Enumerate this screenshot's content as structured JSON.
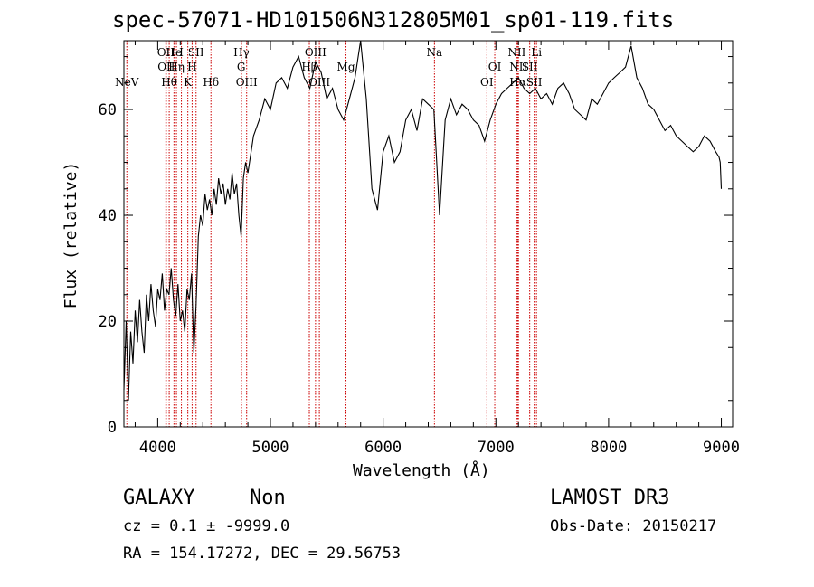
{
  "chart_data": {
    "type": "line",
    "title": "spec-57071-HD101506N312805M01_sp01-119.fits",
    "xlabel": "Wavelength (Å)",
    "ylabel": "Flux (relative)",
    "xlim": [
      3700,
      9100
    ],
    "ylim": [
      0,
      73
    ],
    "x_ticks": [
      4000,
      5000,
      6000,
      7000,
      8000,
      9000
    ],
    "y_ticks": [
      0,
      20,
      40,
      60
    ],
    "grid": false,
    "legend": "none",
    "line_color": "#000000",
    "marker_color": "#cc0000",
    "series": [
      {
        "x": [
          3700,
          3720,
          3740,
          3760,
          3780,
          3800,
          3820,
          3840,
          3860,
          3880,
          3900,
          3920,
          3940,
          3960,
          3980,
          4000,
          4020,
          4040,
          4060,
          4080,
          4100,
          4120,
          4140,
          4160,
          4180,
          4200,
          4220,
          4240,
          4260,
          4280,
          4300,
          4320,
          4340,
          4360,
          4380,
          4400,
          4420,
          4440,
          4460,
          4480,
          4500,
          4520,
          4540,
          4560,
          4580,
          4600,
          4620,
          4640,
          4660,
          4680,
          4700,
          4720,
          4740,
          4760,
          4780,
          4800,
          4850,
          4900,
          4950,
          5000,
          5050,
          5100,
          5150,
          5200,
          5250,
          5300,
          5350,
          5400,
          5450,
          5500,
          5550,
          5600,
          5650,
          5700,
          5750,
          5800,
          5850,
          5900,
          5950,
          6000,
          6050,
          6100,
          6150,
          6200,
          6250,
          6300,
          6350,
          6400,
          6450,
          6500,
          6550,
          6600,
          6650,
          6700,
          6750,
          6800,
          6850,
          6900,
          6950,
          7000,
          7050,
          7100,
          7150,
          7200,
          7250,
          7300,
          7350,
          7400,
          7450,
          7500,
          7550,
          7600,
          7650,
          7700,
          7750,
          7800,
          7850,
          7900,
          7950,
          8000,
          8050,
          8100,
          8150,
          8200,
          8250,
          8300,
          8350,
          8400,
          8450,
          8500,
          8550,
          8600,
          8650,
          8700,
          8750,
          8800,
          8850,
          8900,
          8950,
          8980,
          8990,
          9000
        ],
        "y": [
          7,
          20,
          5,
          18,
          12,
          22,
          16,
          24,
          18,
          14,
          25,
          20,
          27,
          22,
          19,
          26,
          24,
          29,
          22,
          26,
          25,
          30,
          24,
          21,
          27,
          20,
          22,
          18,
          26,
          24,
          29,
          14,
          23,
          36,
          40,
          38,
          44,
          41,
          43,
          40,
          45,
          42,
          47,
          44,
          46,
          42,
          45,
          43,
          48,
          44,
          46,
          40,
          36,
          47,
          50,
          48,
          55,
          58,
          62,
          60,
          65,
          66,
          64,
          68,
          70,
          66,
          64,
          69,
          67,
          62,
          64,
          60,
          58,
          62,
          66,
          73,
          62,
          45,
          41,
          52,
          55,
          50,
          52,
          58,
          60,
          56,
          62,
          61,
          60,
          40,
          58,
          62,
          59,
          61,
          60,
          58,
          57,
          54,
          58,
          61,
          63,
          64,
          65,
          66,
          64,
          63,
          64,
          62,
          63,
          61,
          64,
          65,
          63,
          60,
          59,
          58,
          62,
          61,
          63,
          65,
          66,
          67,
          68,
          72,
          66,
          64,
          61,
          60,
          58,
          56,
          57,
          55,
          54,
          53,
          52,
          53,
          55,
          54,
          52,
          51,
          50,
          45
        ]
      }
    ],
    "lines": [
      {
        "label": "NeV",
        "x": 3726,
        "row": 3
      },
      {
        "label": "OII",
        "x": 4072,
        "row": 1
      },
      {
        "label": "OII",
        "x": 4076,
        "row": 2
      },
      {
        "label": "Hθ",
        "x": 4102,
        "row": 3
      },
      {
        "label": "He",
        "x": 4144,
        "row": 1
      },
      {
        "label": "Hη",
        "x": 4166,
        "row": 2
      },
      {
        "label": "I",
        "x": 4210,
        "row": 1
      },
      {
        "label": "K",
        "x": 4267,
        "row": 3
      },
      {
        "label": "H",
        "x": 4305,
        "row": 2
      },
      {
        "label": "SII",
        "x": 4340,
        "row": 1
      },
      {
        "label": "Hδ",
        "x": 4472,
        "row": 3
      },
      {
        "label": "Hγ",
        "x": 4743,
        "row": 1
      },
      {
        "label": "G",
        "x": 4740,
        "row": 2
      },
      {
        "label": "OIII",
        "x": 4789,
        "row": 3
      },
      {
        "label": "OIII",
        "x": 5400,
        "row": 1
      },
      {
        "label": "Hβ",
        "x": 5345,
        "row": 2
      },
      {
        "label": "OIII",
        "x": 5434,
        "row": 3
      },
      {
        "label": "Mg",
        "x": 5670,
        "row": 2
      },
      {
        "label": "Na",
        "x": 6455,
        "row": 1
      },
      {
        "label": "OI",
        "x": 6990,
        "row": 2
      },
      {
        "label": "OI",
        "x": 6920,
        "row": 3
      },
      {
        "label": "NII",
        "x": 7185,
        "row": 1
      },
      {
        "label": "NII",
        "x": 7200,
        "row": 2
      },
      {
        "label": "Hα",
        "x": 7195,
        "row": 3
      },
      {
        "label": "SII",
        "x": 7300,
        "row": 2
      },
      {
        "label": "Li",
        "x": 7360,
        "row": 1
      },
      {
        "label": "SII",
        "x": 7340,
        "row": 3
      }
    ]
  },
  "info": {
    "class": "GALAXY",
    "subclass": "Non",
    "survey": "LAMOST DR3",
    "cz": "cz = 0.1 ± -9999.0",
    "obs_date": "Obs-Date: 20150217",
    "coords": "RA = 154.17272, DEC =  29.56753"
  }
}
